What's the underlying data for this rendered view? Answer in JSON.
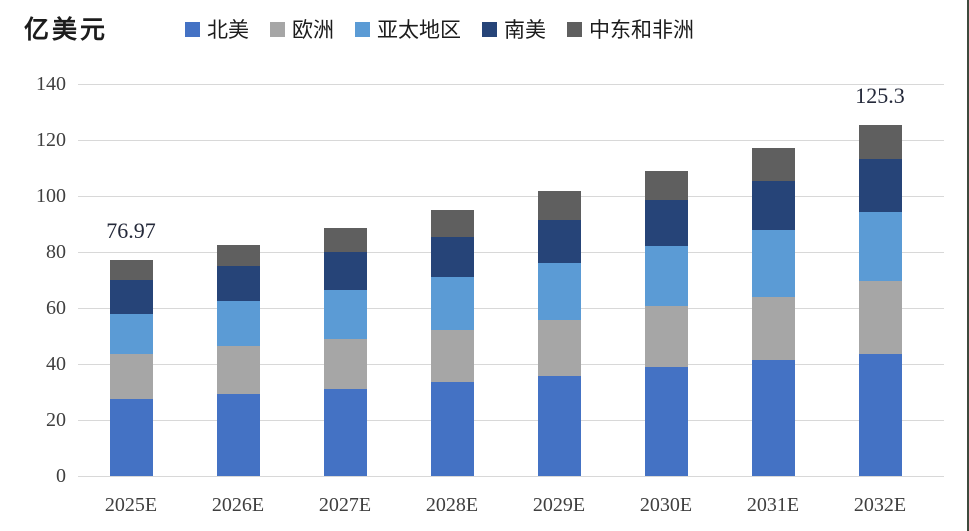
{
  "chart_data": {
    "type": "bar",
    "stacked": true,
    "unit": "亿美元",
    "legend_position": "top",
    "grid": "horizontal",
    "grid_color": "#d8d8d8",
    "categories": [
      "2025E",
      "2026E",
      "2027E",
      "2028E",
      "2029E",
      "2030E",
      "2031E",
      "2032E"
    ],
    "series": [
      {
        "name": "北美",
        "color": "#4472c4",
        "values": [
          27.4,
          29.2,
          31.2,
          33.6,
          35.7,
          38.9,
          41.3,
          43.7
        ]
      },
      {
        "name": "欧洲",
        "color": "#a6a6a6",
        "values": [
          16.1,
          17.2,
          17.8,
          18.4,
          20.1,
          21.7,
          22.8,
          26.1
        ]
      },
      {
        "name": "亚太地区",
        "color": "#5b9bd5",
        "values": [
          14.3,
          16.1,
          17.3,
          19.0,
          20.2,
          21.4,
          23.8,
          24.4
        ]
      },
      {
        "name": "南美",
        "color": "#264478",
        "values": [
          12.1,
          12.4,
          13.8,
          14.2,
          15.4,
          16.6,
          17.6,
          19.0
        ]
      },
      {
        "name": "中东和非洲",
        "color": "#5f5f5f",
        "values": [
          7.1,
          7.6,
          8.6,
          9.8,
          10.5,
          10.3,
          11.6,
          12.1
        ]
      }
    ],
    "totals": [
      77.0,
      82.5,
      88.7,
      95.0,
      101.9,
      108.9,
      117.1,
      125.3
    ],
    "annotations": [
      {
        "category_index": 0,
        "text": "76.97"
      },
      {
        "category_index": 7,
        "text": "125.3"
      }
    ],
    "yticks": [
      0,
      20,
      40,
      60,
      80,
      100,
      120,
      140
    ],
    "ylim": [
      0,
      140
    ],
    "xlabel": "",
    "ylabel": ""
  }
}
